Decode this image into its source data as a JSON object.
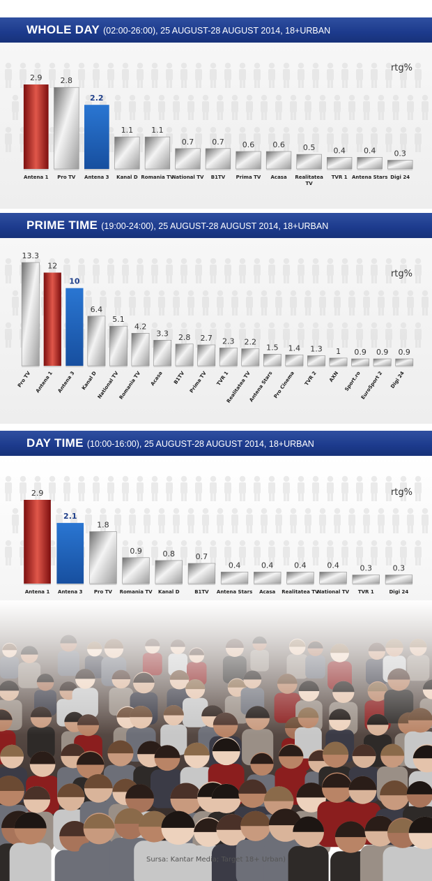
{
  "colors": {
    "antena1": "#b8211d",
    "antena3": "#1f5fb5",
    "other": "#9a9a9a",
    "banner": "#1c3a8c"
  },
  "source": "Sursa: Kantar Media; Target 18+ Urban)",
  "chart_data": [
    {
      "type": "bar",
      "title_main": "WHOLE DAY",
      "title_sub": "(02:00-26:00), 25 AUGUST-28 AUGUST 2014, 18+URBAN",
      "unit_label": "rtg%",
      "categories": [
        "Antena 1",
        "Pro TV",
        "Antena 3",
        "Kanal D",
        "Romania TV",
        "National TV",
        "B1TV",
        "Prima TV",
        "Acasa",
        "Realitatea TV",
        "TVR 1",
        "Antena Stars",
        "Digi 24"
      ],
      "values": [
        2.9,
        2.8,
        2.2,
        1.1,
        1.1,
        0.7,
        0.7,
        0.6,
        0.6,
        0.5,
        0.4,
        0.4,
        0.3
      ],
      "value_labels": [
        "2.9",
        "2.8",
        "2.2",
        "1.1",
        "1.1",
        "0.7",
        "0.7",
        "0.6",
        "0.6",
        "0.5",
        "0.4",
        "0.4",
        "0.3"
      ],
      "highlight": {
        "Antena 1": "antena1",
        "Antena 3": "antena3"
      }
    },
    {
      "type": "bar",
      "title_main": "PRIME TIME",
      "title_sub": "(19:00-24:00), 25 AUGUST-28 AUGUST 2014, 18+URBAN",
      "unit_label": "rtg%",
      "categories": [
        "Pro TV",
        "Antena 1",
        "Antena 3",
        "Kanal D",
        "National TV",
        "Romania TV",
        "Acasa",
        "B1TV",
        "Prima TV",
        "TVR 1",
        "Realitatea TV",
        "Antena Stars",
        "Pro Cinema",
        "TVR 2",
        "AXN",
        "Sport.ro",
        "EuroSport 2",
        "Digi 24"
      ],
      "values": [
        13.3,
        12,
        10,
        6.4,
        5.1,
        4.2,
        3.3,
        2.8,
        2.7,
        2.3,
        2.2,
        1.5,
        1.4,
        1.3,
        1,
        0.9,
        0.9,
        0.9
      ],
      "value_labels": [
        "13.3",
        "12",
        "10",
        "6.4",
        "5.1",
        "4.2",
        "3.3",
        "2.8",
        "2.7",
        "2.3",
        "2.2",
        "1.5",
        "1.4",
        "1.3",
        "1",
        "0.9",
        "0.9",
        "0.9"
      ],
      "highlight": {
        "Antena 1": "antena1",
        "Antena 3": "antena3"
      }
    },
    {
      "type": "bar",
      "title_main": "DAY TIME",
      "title_sub": "(10:00-16:00), 25 AUGUST-28 AUGUST 2014, 18+URBAN",
      "unit_label": "rtg%",
      "categories": [
        "Antena 1",
        "Antena 3",
        "Pro TV",
        "Romania TV",
        "Kanal D",
        "B1TV",
        "Antena Stars",
        "Acasa",
        "Realitatea TV",
        "National TV",
        "TVR 1",
        "Digi 24"
      ],
      "values": [
        2.9,
        2.1,
        1.8,
        0.9,
        0.8,
        0.7,
        0.4,
        0.4,
        0.4,
        0.4,
        0.3,
        0.3
      ],
      "value_labels": [
        "2.9",
        "2.1",
        "1.8",
        "0.9",
        "0.8",
        "0.7",
        "0.4",
        "0.4",
        "0.4",
        "0.4",
        "0.3",
        "0.3"
      ],
      "highlight": {
        "Antena 1": "antena1",
        "Antena 3": "antena3"
      }
    }
  ]
}
